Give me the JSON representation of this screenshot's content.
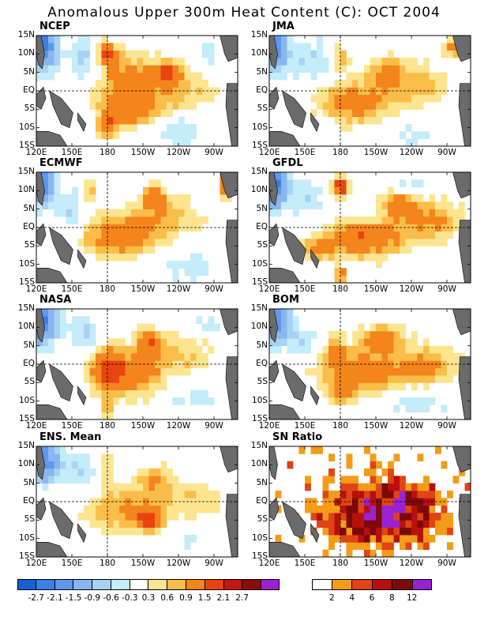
{
  "title": "Anomalous Upper 300m Heat Content (C): OCT 2004",
  "chart_data": {
    "type": "heatmap",
    "variable": "Anomalous Upper 300m Heat Content (C)",
    "month": "OCT 2004",
    "x_ticks": [
      "120E",
      "150E",
      "180",
      "150W",
      "120W",
      "90W"
    ],
    "y_ticks": [
      "15N",
      "10N",
      "5N",
      "EQ",
      "5S",
      "10S",
      "15S"
    ],
    "lon_range": [
      120,
      290
    ],
    "lat_range": [
      -15,
      15
    ],
    "panels": [
      {
        "name": "NCEP",
        "peak": 1.5,
        "blobs": [
          [
            180,
            10,
            8,
            3,
            1.8
          ],
          [
            200,
            4,
            30,
            6,
            1.0
          ],
          [
            200,
            -3,
            35,
            5,
            0.9
          ],
          [
            230,
            5,
            12,
            3,
            1.3
          ],
          [
            180,
            -10,
            8,
            3,
            1.4
          ],
          [
            250,
            0,
            25,
            5,
            0.6
          ],
          [
            200,
            -7,
            20,
            3,
            0.8
          ]
        ],
        "cold": [
          [
            125,
            12,
            12,
            6,
            -2.4
          ],
          [
            160,
            8,
            15,
            6,
            -0.7
          ],
          [
            240,
            -11,
            25,
            5,
            -0.5
          ],
          [
            265,
            10,
            12,
            4,
            -0.5
          ]
        ]
      },
      {
        "name": "JMA",
        "peak": 1.2,
        "blobs": [
          [
            195,
            -3,
            35,
            6,
            1.2
          ],
          [
            220,
            5,
            15,
            4,
            1.1
          ],
          [
            250,
            2,
            20,
            6,
            0.7
          ],
          [
            180,
            9,
            8,
            4,
            0.8
          ],
          [
            275,
            12,
            8,
            3,
            1.0
          ]
        ],
        "cold": [
          [
            125,
            12,
            10,
            6,
            -2.2
          ],
          [
            155,
            8,
            20,
            6,
            -0.6
          ],
          [
            235,
            -11,
            25,
            5,
            -0.4
          ]
        ]
      },
      {
        "name": "ECMWF",
        "peak": 1.2,
        "blobs": [
          [
            180,
            -3,
            25,
            5,
            1.0
          ],
          [
            205,
            0,
            25,
            6,
            0.9
          ],
          [
            220,
            8,
            10,
            3,
            1.2
          ],
          [
            280,
            12,
            5,
            3,
            1.8
          ],
          [
            240,
            3,
            25,
            6,
            0.6
          ],
          [
            165,
            10,
            5,
            3,
            0.9
          ]
        ],
        "cold": [
          [
            125,
            12,
            10,
            6,
            -2.0
          ],
          [
            150,
            5,
            12,
            6,
            -0.6
          ],
          [
            250,
            -10,
            25,
            5,
            -0.5
          ]
        ]
      },
      {
        "name": "GFDL",
        "peak": 1.6,
        "blobs": [
          [
            180,
            11,
            6,
            3,
            2.0
          ],
          [
            200,
            -3,
            35,
            5,
            1.5
          ],
          [
            230,
            6,
            15,
            4,
            1.3
          ],
          [
            260,
            2,
            25,
            5,
            1.0
          ],
          [
            160,
            -6,
            12,
            3,
            1.0
          ],
          [
            180,
            -13,
            6,
            2,
            1.2
          ]
        ],
        "cold": [
          [
            125,
            12,
            10,
            6,
            -2.3
          ],
          [
            150,
            8,
            15,
            5,
            -0.6
          ],
          [
            240,
            12,
            20,
            3,
            -0.4
          ]
        ]
      },
      {
        "name": "NASA",
        "peak": 1.5,
        "blobs": [
          [
            180,
            -1,
            15,
            6,
            1.6
          ],
          [
            205,
            -3,
            25,
            6,
            1.1
          ],
          [
            215,
            6,
            12,
            4,
            1.3
          ],
          [
            245,
            3,
            25,
            6,
            0.6
          ],
          [
            180,
            -12,
            5,
            3,
            1.0
          ]
        ],
        "cold": [
          [
            125,
            12,
            12,
            6,
            -2.3
          ],
          [
            160,
            8,
            15,
            5,
            -0.7
          ],
          [
            250,
            -9,
            25,
            5,
            -0.4
          ],
          [
            265,
            11,
            12,
            3,
            -0.5
          ]
        ]
      },
      {
        "name": "BOM",
        "peak": 1.3,
        "blobs": [
          [
            200,
            -2,
            40,
            6,
            1.2
          ],
          [
            215,
            7,
            20,
            4,
            1.0
          ],
          [
            255,
            0,
            25,
            5,
            0.9
          ],
          [
            180,
            -8,
            10,
            3,
            0.8
          ],
          [
            175,
            4,
            8,
            5,
            0.9
          ]
        ],
        "cold": [
          [
            125,
            12,
            12,
            6,
            -2.0
          ],
          [
            150,
            6,
            12,
            5,
            -0.6
          ],
          [
            245,
            -11,
            25,
            4,
            -0.5
          ]
        ]
      },
      {
        "name": "ENS. Mean",
        "peak": 1.2,
        "blobs": [
          [
            195,
            -2,
            35,
            6,
            1.0
          ],
          [
            215,
            -5,
            12,
            3,
            1.3
          ],
          [
            220,
            6,
            15,
            4,
            0.8
          ],
          [
            255,
            1,
            25,
            6,
            0.5
          ],
          [
            180,
            9,
            6,
            4,
            0.7
          ]
        ],
        "cold": [
          [
            125,
            12,
            12,
            6,
            -2.2
          ],
          [
            155,
            8,
            18,
            5,
            -0.6
          ],
          [
            245,
            -10,
            20,
            4,
            -0.4
          ]
        ]
      },
      {
        "name": "SN Ratio",
        "kind": "snr",
        "peak": 12
      }
    ],
    "colorbar_anomaly": {
      "labels": [
        "-2.7",
        "-2.1",
        "-1.5",
        "-0.9",
        "-0.6",
        "-0.3",
        "0.3",
        "0.6",
        "0.9",
        "1.5",
        "2.1",
        "2.7"
      ],
      "levels": [
        -2.7,
        -2.1,
        -1.5,
        -0.9,
        -0.6,
        -0.3,
        0.3,
        0.6,
        0.9,
        1.5,
        2.1,
        2.7
      ],
      "colors": [
        "#1560d8",
        "#3a7ee6",
        "#5e98ec",
        "#8ab6f0",
        "#a8d2f4",
        "#c4ecfa",
        "#ffffff",
        "#fde590",
        "#fbbd49",
        "#f4841c",
        "#e84412",
        "#c41610",
        "#8c0c0c",
        "#9b22d2"
      ]
    },
    "colorbar_snr": {
      "labels": [
        "2",
        "4",
        "6",
        "8",
        "12"
      ],
      "levels": [
        2,
        4,
        6,
        8,
        12
      ],
      "colors": [
        "#ffffff",
        "#f49b18",
        "#e04414",
        "#b8100e",
        "#7c0a0a",
        "#9b22d2"
      ]
    }
  }
}
